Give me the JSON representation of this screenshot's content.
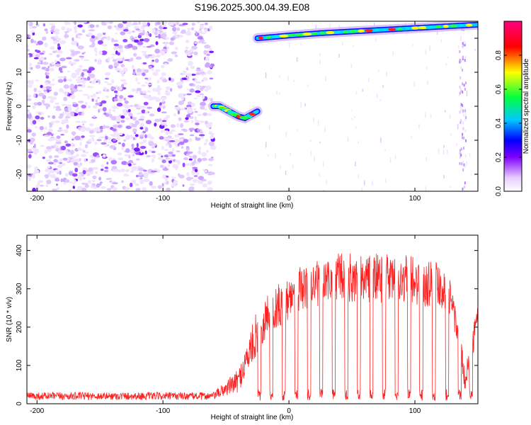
{
  "title": "S196.2025.300.04.39.E08",
  "colors": {
    "snr_line": "#ff2020",
    "colorbar": [
      "#ffffff",
      "#a020f0",
      "#0000ff",
      "#00c8ff",
      "#00ff40",
      "#ffff00",
      "#ff0000",
      "#ff0080"
    ]
  },
  "chart_data": [
    {
      "type": "heatmap",
      "title": "S196.2025.300.04.39.E08",
      "xlabel": "Height of straight line (km)",
      "ylabel": "Frequency (Hz)",
      "colorbar_label": "Normalized spectral amplitude",
      "xlim": [
        -208,
        150
      ],
      "ylim": [
        -25,
        25
      ],
      "x_ticks": [
        -200,
        -100,
        0,
        100
      ],
      "y_ticks": [
        -20,
        -10,
        0,
        10,
        20
      ],
      "colorbar_ticks": [
        "0.0",
        "0.2",
        "0.4",
        "0.6",
        "0.8"
      ],
      "colorbar_range": [
        0,
        1
      ],
      "noise_region_x": [
        -208,
        -60
      ],
      "features": [
        {
          "name": "low-frequency arc",
          "x": [
            -60,
            -55,
            -50,
            -45,
            -40,
            -35,
            -30,
            -25
          ],
          "y": [
            0,
            0,
            -1,
            -2,
            -3,
            -3.5,
            -2.5,
            -1.5
          ]
        },
        {
          "name": "rising tone",
          "x": [
            -25,
            0,
            25,
            50,
            75,
            100,
            125,
            150
          ],
          "y": [
            20,
            20.8,
            21.5,
            22,
            22.5,
            23,
            23.5,
            24
          ]
        }
      ]
    },
    {
      "type": "line",
      "xlabel": "Height of straight line (km)",
      "ylabel": "SNR (10 * v/v)",
      "xlim": [
        -208,
        150
      ],
      "ylim": [
        0,
        440
      ],
      "x_ticks": [
        -200,
        -100,
        0,
        100
      ],
      "y_ticks": [
        0,
        100,
        200,
        300,
        400
      ],
      "series": [
        {
          "x": [
            -208,
            -60,
            -40,
            -25,
            -15,
            -5,
            5,
            20,
            40,
            60,
            80,
            100,
            120,
            130,
            140,
            150
          ],
          "y": [
            20,
            20,
            60,
            190,
            240,
            260,
            295,
            310,
            330,
            325,
            330,
            320,
            315,
            260,
            60,
            230
          ],
          "noise": [
            10,
            10,
            30,
            60,
            60,
            60,
            60,
            60,
            65,
            65,
            65,
            65,
            65,
            50,
            30,
            40
          ],
          "dropouts_x": [
            -23.5,
            -14,
            -4,
            6,
            16,
            25.5,
            35.5,
            45.5,
            55.5,
            65.5,
            75.5,
            85.5,
            95.5,
            105,
            115,
            125.5,
            135.5,
            144.5
          ]
        }
      ]
    }
  ]
}
